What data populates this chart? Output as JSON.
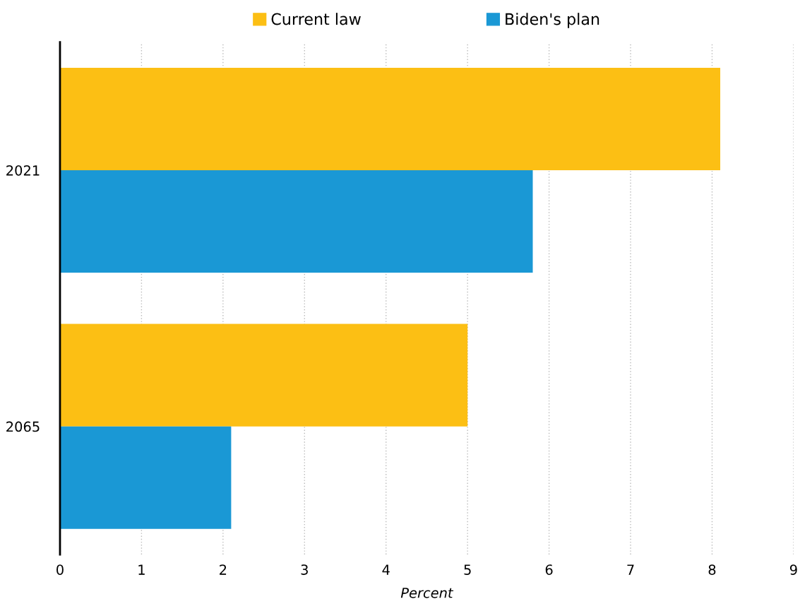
{
  "chart_data": {
    "type": "bar",
    "orientation": "horizontal",
    "categories": [
      "2021",
      "2065"
    ],
    "xlabel": "Percent",
    "series": [
      {
        "name": "Current law",
        "color": "#fcbf14",
        "values": [
          8.1,
          5.0
        ]
      },
      {
        "name": "Biden's plan",
        "color": "#1a98d5",
        "values": [
          5.8,
          2.1
        ]
      }
    ],
    "xlim": [
      0,
      9
    ],
    "xticks": [
      0,
      1,
      2,
      3,
      4,
      5,
      6,
      7,
      8,
      9
    ],
    "grid": "x",
    "legend": "top"
  }
}
